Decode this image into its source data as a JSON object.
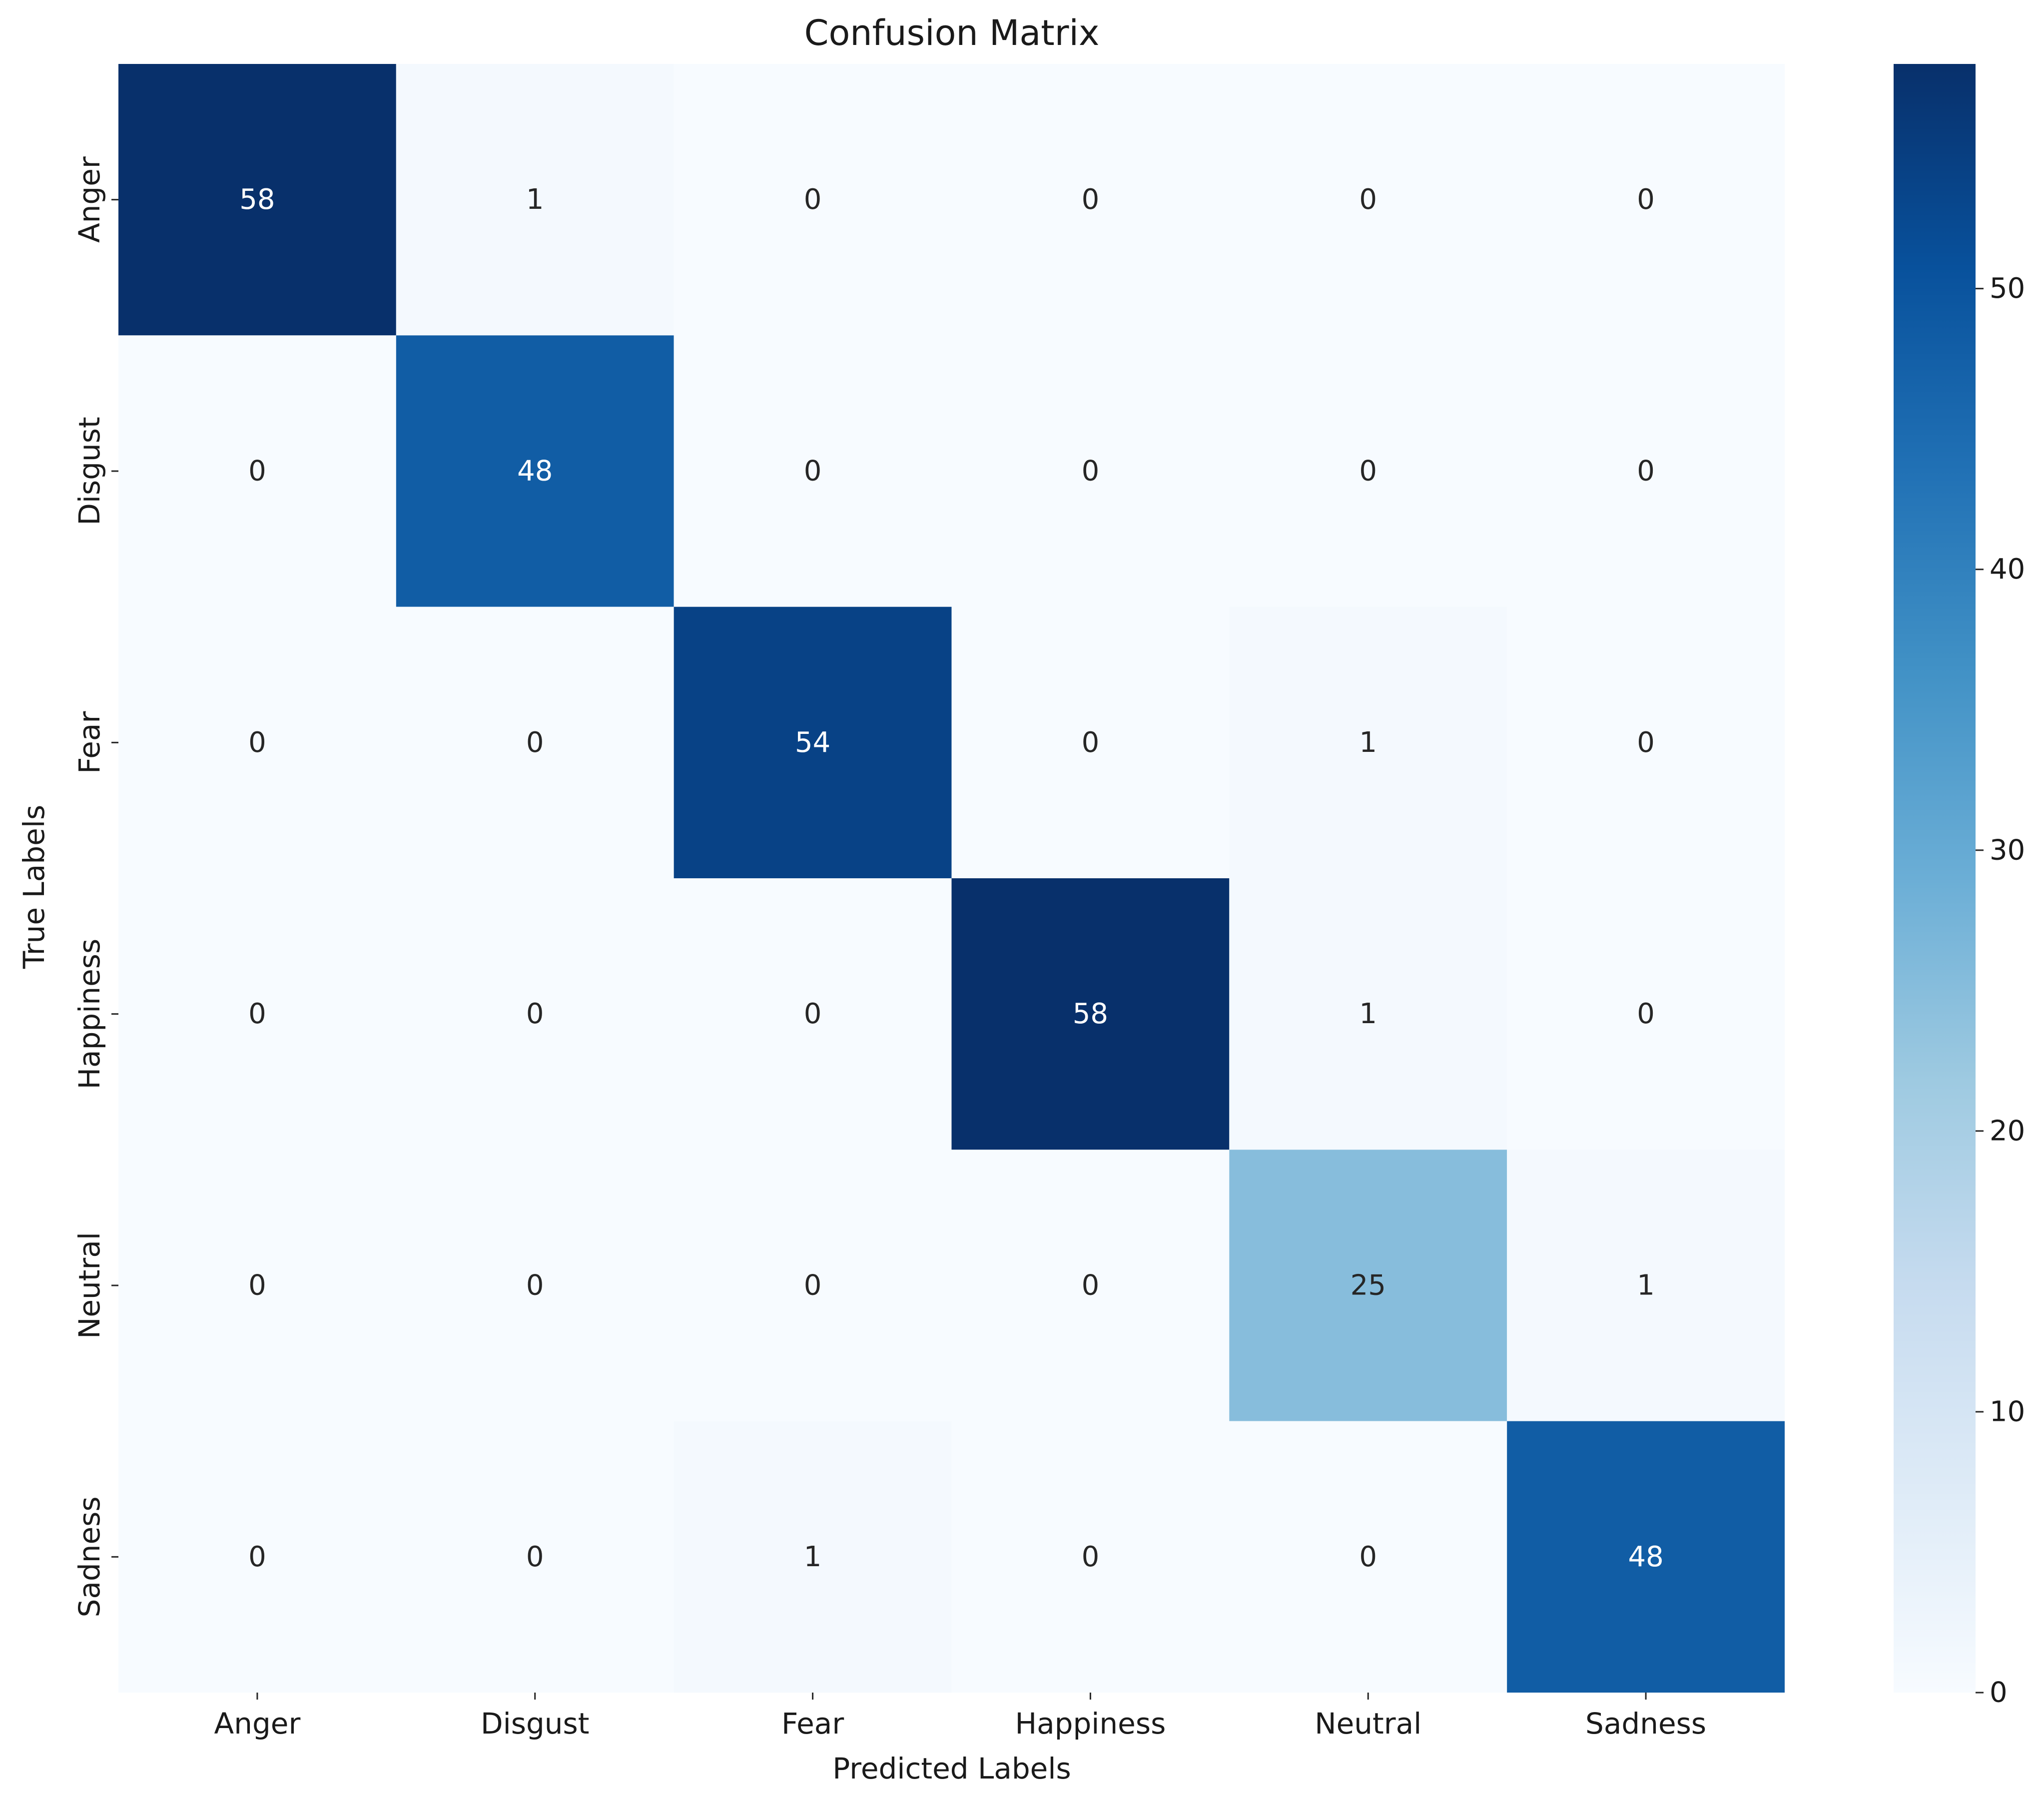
{
  "chart_data": {
    "type": "heatmap",
    "title": "Confusion Matrix",
    "xlabel": "Predicted Labels",
    "ylabel": "True Labels",
    "x_categories": [
      "Anger",
      "Disgust",
      "Fear",
      "Happiness",
      "Neutral",
      "Sadness"
    ],
    "y_categories": [
      "Anger",
      "Disgust",
      "Fear",
      "Happiness",
      "Neutral",
      "Sadness"
    ],
    "matrix": [
      [
        58,
        1,
        0,
        0,
        0,
        0
      ],
      [
        0,
        48,
        0,
        0,
        0,
        0
      ],
      [
        0,
        0,
        54,
        0,
        1,
        0
      ],
      [
        0,
        0,
        0,
        58,
        1,
        0
      ],
      [
        0,
        0,
        0,
        0,
        25,
        1
      ],
      [
        0,
        0,
        1,
        0,
        0,
        48
      ]
    ],
    "colormap": "Blues",
    "color_range": [
      0,
      58
    ],
    "colorbar_ticks": [
      0,
      10,
      20,
      30,
      40,
      50
    ],
    "colorbar_tick_labels": [
      "0",
      "10",
      "20",
      "30",
      "40",
      "50"
    ]
  }
}
